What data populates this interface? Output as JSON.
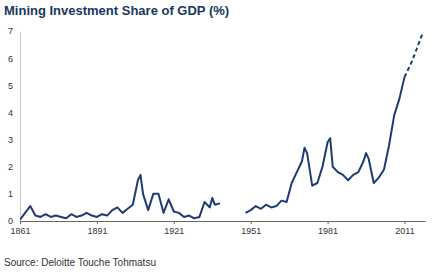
{
  "chart_data": {
    "type": "line",
    "title": "Mining Investment Share of GDP (%)",
    "source": "Source: Deloitte Touche Tohmatsu",
    "x": [
      1861,
      1863,
      1865,
      1867,
      1869,
      1871,
      1873,
      1875,
      1877,
      1879,
      1881,
      1883,
      1885,
      1887,
      1889,
      1891,
      1893,
      1895,
      1897,
      1899,
      1901,
      1903,
      1905,
      1907,
      1908,
      1909,
      1911,
      1913,
      1915,
      1917,
      1919,
      1921,
      1923,
      1925,
      1927,
      1929,
      1931,
      1933,
      1935,
      1936,
      1937,
      1939,
      1944,
      1949,
      1951,
      1953,
      1955,
      1957,
      1959,
      1961,
      1963,
      1965,
      1967,
      1969,
      1971,
      1972,
      1973,
      1975,
      1977,
      1979,
      1981,
      1982,
      1983,
      1985,
      1987,
      1989,
      1991,
      1993,
      1995,
      1996,
      1997,
      1999,
      2001,
      2003,
      2005,
      2007,
      2009,
      2011,
      2014,
      2018
    ],
    "series": [
      {
        "color": "#1f3b73",
        "line_style": "solid",
        "values": [
          0.05,
          0.3,
          0.55,
          0.2,
          0.15,
          0.25,
          0.15,
          0.2,
          0.15,
          0.1,
          0.25,
          0.15,
          0.2,
          0.3,
          0.2,
          0.15,
          0.25,
          0.2,
          0.4,
          0.5,
          0.3,
          0.45,
          0.6,
          1.5,
          1.7,
          1.0,
          0.4,
          1.0,
          1.0,
          0.3,
          0.8,
          0.35,
          0.3,
          0.15,
          0.2,
          0.1,
          0.15,
          0.7,
          0.5,
          0.85,
          0.6,
          0.65,
          null,
          0.3,
          0.4,
          0.55,
          0.45,
          0.6,
          0.5,
          0.55,
          0.75,
          0.7,
          1.4,
          1.8,
          2.2,
          2.7,
          2.5,
          1.3,
          1.4,
          2.0,
          2.9,
          3.05,
          2.0,
          1.8,
          1.7,
          1.5,
          1.7,
          1.8,
          2.2,
          2.5,
          2.3,
          1.4,
          1.6,
          1.9,
          2.8,
          3.9,
          4.5,
          5.3,
          null,
          null
        ]
      },
      {
        "color": "#1f3b73",
        "line_style": "dashed",
        "values": [
          null,
          null,
          null,
          null,
          null,
          null,
          null,
          null,
          null,
          null,
          null,
          null,
          null,
          null,
          null,
          null,
          null,
          null,
          null,
          null,
          null,
          null,
          null,
          null,
          null,
          null,
          null,
          null,
          null,
          null,
          null,
          null,
          null,
          null,
          null,
          null,
          null,
          null,
          null,
          null,
          null,
          null,
          null,
          null,
          null,
          null,
          null,
          null,
          null,
          null,
          null,
          null,
          null,
          null,
          null,
          null,
          null,
          null,
          null,
          null,
          null,
          null,
          null,
          null,
          null,
          null,
          null,
          null,
          null,
          null,
          null,
          null,
          null,
          null,
          null,
          null,
          null,
          5.3,
          5.9,
          6.9
        ]
      }
    ],
    "xlim": [
      1861,
      2019
    ],
    "xticks": [
      1861,
      1891,
      1921,
      1951,
      1981,
      2011
    ],
    "ylim": [
      0,
      7
    ],
    "yticks": [
      0,
      1,
      2,
      3,
      4,
      5,
      6,
      7
    ],
    "grid": false
  }
}
